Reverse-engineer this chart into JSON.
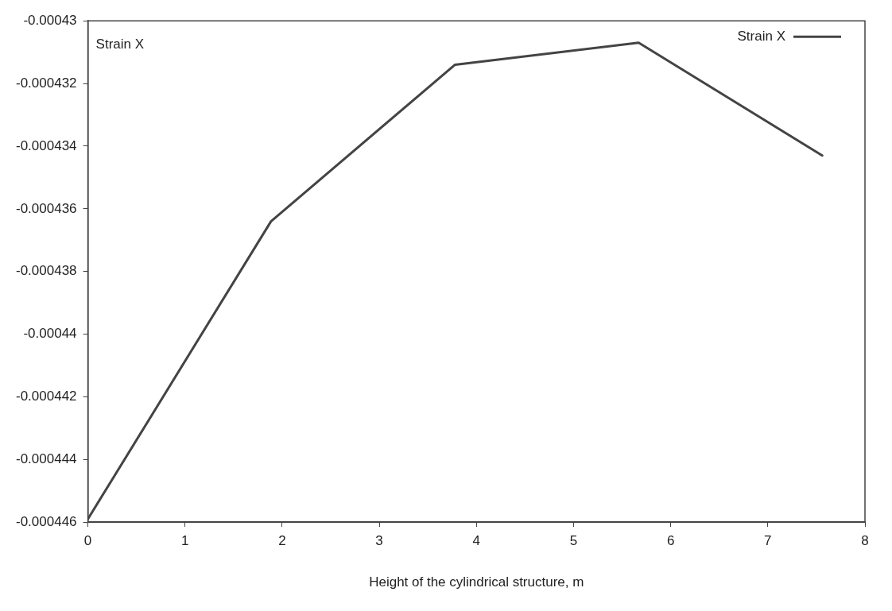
{
  "chart_data": {
    "type": "line",
    "xlabel": "Height of the cylindrical structure, m",
    "annotations": [
      "Strain X"
    ],
    "x": [
      0,
      1.885,
      3.78,
      5.67,
      7.56
    ],
    "series": [
      {
        "name": "Strain X",
        "color": "#444444",
        "values": [
          -0.0004459,
          -0.0004364,
          -0.0004314,
          -0.0004307,
          -0.0004343
        ]
      }
    ],
    "xlim": [
      0,
      8
    ],
    "xticks": [
      0,
      1,
      2,
      3,
      4,
      5,
      6,
      7,
      8
    ],
    "ylim": [
      -0.000446,
      -0.00043
    ],
    "yticks": [
      -0.000446,
      -0.000444,
      -0.000442,
      -0.00044,
      -0.000438,
      -0.000436,
      -0.000434,
      -0.000432,
      -0.00043
    ],
    "grid": false,
    "legend": "top right",
    "marker": "none",
    "line_style": "solid"
  }
}
